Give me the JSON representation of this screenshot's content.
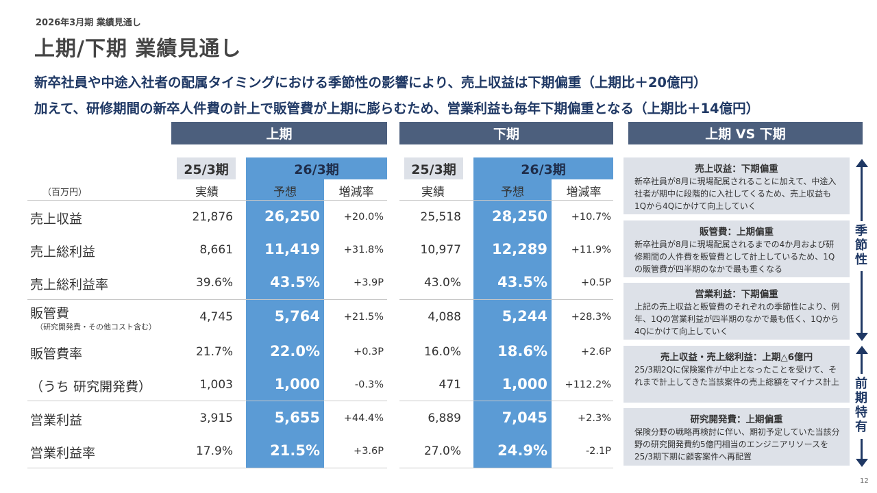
{
  "pre_title": "2026年3月期 業績見通し",
  "title": "上期/下期 業績見通し",
  "lead": [
    "新卒社員や中途入社者の配属タイミングにおける季節性の影響により、売上収益は下期偏重（上期比＋20億円）",
    "加えて、研修期間の新卒人件費の計上で販管費が上期に膨らむため、営業利益も毎年下期偏重となる（上期比＋14億円）"
  ],
  "sections": {
    "first_half": "上期",
    "second_half": "下期",
    "compare": "上期 VS 下期"
  },
  "years": {
    "prev": "25/3期",
    "curr": "26/3期"
  },
  "col_heads": {
    "actual": "実績",
    "forecast": "予想",
    "change": "増減率"
  },
  "unit": "（百万円）",
  "rows": [
    {
      "label": "売上収益",
      "sub": "",
      "h1_prev": "21,876",
      "h1_fc": "26,250",
      "h1_chg": "+20.0%",
      "h2_prev": "25,518",
      "h2_fc": "28,250",
      "h2_chg": "+10.7%"
    },
    {
      "label": "売上総利益",
      "sub": "",
      "h1_prev": "8,661",
      "h1_fc": "11,419",
      "h1_chg": "+31.8%",
      "h2_prev": "10,977",
      "h2_fc": "12,289",
      "h2_chg": "+11.9%"
    },
    {
      "label": "売上総利益率",
      "sub": "",
      "h1_prev": "39.6%",
      "h1_fc": "43.5%",
      "h1_chg": "+3.9P",
      "h2_prev": "43.0%",
      "h2_fc": "43.5%",
      "h2_chg": "+0.5P"
    },
    {
      "label": "販管費",
      "sub": "（研究開発費・その他コスト含む）",
      "h1_prev": "4,745",
      "h1_fc": "5,764",
      "h1_chg": "+21.5%",
      "h2_prev": "4,088",
      "h2_fc": "5,244",
      "h2_chg": "+28.3%"
    },
    {
      "label": "販管費率",
      "sub": "",
      "h1_prev": "21.7%",
      "h1_fc": "22.0%",
      "h1_chg": "+0.3P",
      "h2_prev": "16.0%",
      "h2_fc": "18.6%",
      "h2_chg": "+2.6P"
    },
    {
      "label": "（うち 研究開発費）",
      "sub": "",
      "h1_prev": "1,003",
      "h1_fc": "1,000",
      "h1_chg": "-0.3%",
      "h2_prev": "471",
      "h2_fc": "1,000",
      "h2_chg": "+112.2%"
    },
    {
      "label": "営業利益",
      "sub": "",
      "h1_prev": "3,915",
      "h1_fc": "5,655",
      "h1_chg": "+44.4%",
      "h2_prev": "6,889",
      "h2_fc": "7,045",
      "h2_chg": "+2.3%"
    },
    {
      "label": "営業利益率",
      "sub": "",
      "h1_prev": "17.9%",
      "h1_fc": "21.5%",
      "h1_chg": "+3.6P",
      "h2_prev": "27.0%",
      "h2_fc": "24.9%",
      "h2_chg": "-2.1P"
    }
  ],
  "boxes": [
    {
      "title": "売上収益：下期偏重",
      "body": "新卒社員が8月に現場配属されることに加えて、中途入社者が期中に段階的に入社してくるため、売上収益も1Qから4Qにかけて向上していく"
    },
    {
      "title": "販管費：上期偏重",
      "body": "新卒社員が8月に現場配属されるまでの4か月および研修期間の人件費を販管費として計上しているため、1Qの販管費が四半期のなかで最も重くなる"
    },
    {
      "title": "営業利益：下期偏重",
      "body": "上記の売上収益と販管費のそれぞれの季節性により、例年、1Qの営業利益が四半期のなかで最も低く、1Qから4Qにかけて向上していく"
    },
    {
      "title": "売上収益・売上総利益：上期△6億円",
      "body": "25/3期2Qに保険案件が中止となったことを受けて、それまで計上してきた当該案件の売上総額をマイナス計上"
    },
    {
      "title": "研究開発費：上期偏重",
      "body": "保険分野の戦略再検討に伴い、期初予定していた当該分野の研究開発費約5億円相当のエンジニアリソースを25/3期下期に顧客案件へ再配置"
    }
  ],
  "side_labels": {
    "seasonal": "季節性",
    "special": "前期特有"
  },
  "page_number": "12",
  "colors": {
    "navy": "#1f3864",
    "header_bg": "#4c5f7d",
    "highlight": "#5b9bd5",
    "panel": "#dde1e8"
  }
}
